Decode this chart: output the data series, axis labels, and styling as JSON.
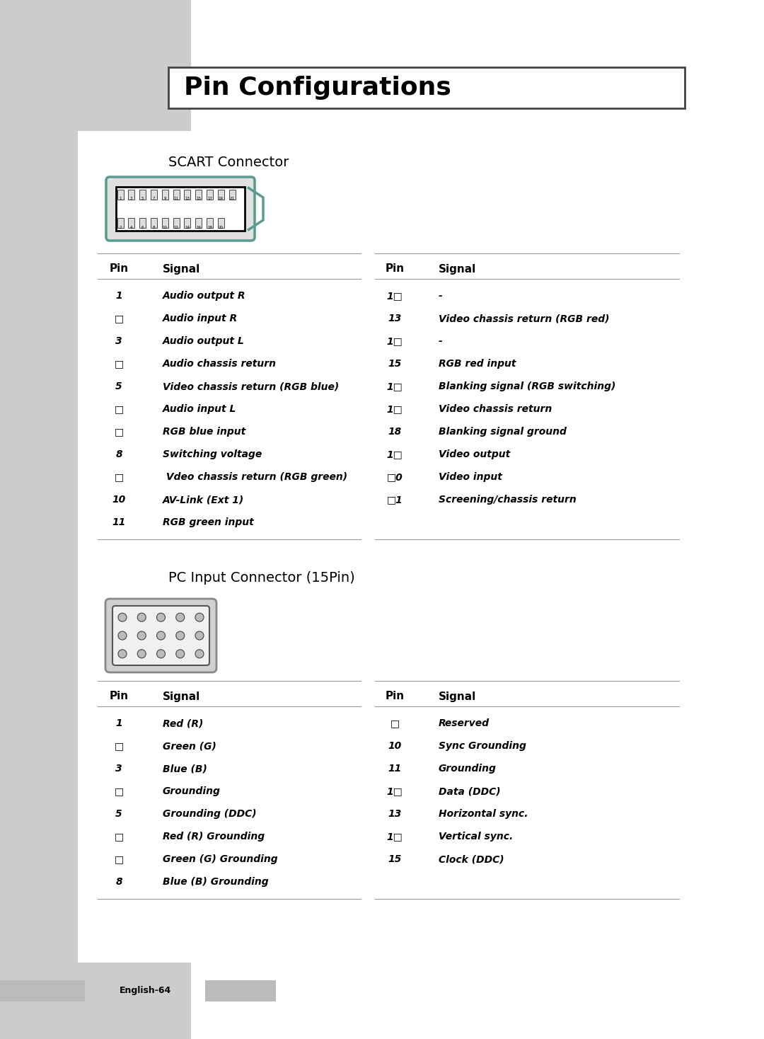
{
  "title": "Pin Configurations",
  "outer_bg": "#ffffff",
  "grey_color": "#cccccc",
  "page_bg": "#ffffff",
  "section1_title": "SCART Connector",
  "section2_title": "PC Input Connector (15Pin)",
  "footer_text": "English-64",
  "scart_left": [
    [
      "1",
      "Audio output R"
    ],
    [
      "□",
      "Audio input R"
    ],
    [
      "3",
      "Audio output L"
    ],
    [
      "□",
      "Audio chassis return"
    ],
    [
      "5",
      "Video chassis return (RGB blue)"
    ],
    [
      "□",
      "Audio input L"
    ],
    [
      "□",
      "RGB blue input"
    ],
    [
      "8",
      "Switching voltage"
    ],
    [
      "□",
      " Vdeo chassis return (RGB green)"
    ],
    [
      "10",
      "AV-Link (Ext 1)"
    ],
    [
      "11",
      "RGB green input"
    ]
  ],
  "scart_right": [
    [
      "1□",
      "-"
    ],
    [
      "13",
      "Video chassis return (RGB red)"
    ],
    [
      "1□",
      "-"
    ],
    [
      "15",
      "RGB red input"
    ],
    [
      "1□",
      "Blanking signal (RGB switching)"
    ],
    [
      "1□",
      "Video chassis return"
    ],
    [
      "18",
      "Blanking signal ground"
    ],
    [
      "1□",
      "Video output"
    ],
    [
      "□0",
      "Video input"
    ],
    [
      "□1",
      "Screening/chassis return"
    ]
  ],
  "pc_left": [
    [
      "1",
      "Red (R)"
    ],
    [
      "□",
      "Green (G)"
    ],
    [
      "3",
      "Blue (B)"
    ],
    [
      "□",
      "Grounding"
    ],
    [
      "5",
      "Grounding (DDC)"
    ],
    [
      "□",
      "Red (R) Grounding"
    ],
    [
      "□",
      "Green (G) Grounding"
    ],
    [
      "8",
      "Blue (B) Grounding"
    ]
  ],
  "pc_right": [
    [
      "□",
      "Reserved"
    ],
    [
      "10",
      "Sync Grounding"
    ],
    [
      "11",
      "Grounding"
    ],
    [
      "1□",
      "Data (DDC)"
    ],
    [
      "13",
      "Horizontal sync."
    ],
    [
      "1□",
      "Vertical sync."
    ],
    [
      "15",
      "Clock (DDC)"
    ]
  ],
  "teal_color": "#5a9a90",
  "line_color": "#999999"
}
